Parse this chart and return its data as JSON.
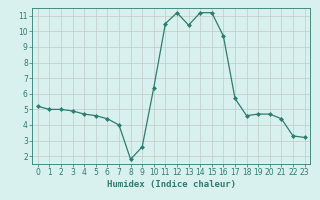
{
  "x": [
    0,
    1,
    2,
    3,
    4,
    5,
    6,
    7,
    8,
    9,
    10,
    11,
    12,
    13,
    14,
    15,
    16,
    17,
    18,
    19,
    20,
    21,
    22,
    23
  ],
  "y": [
    5.2,
    5.0,
    5.0,
    4.9,
    4.7,
    4.6,
    4.4,
    4.0,
    1.8,
    2.6,
    6.4,
    10.5,
    11.2,
    10.4,
    11.2,
    11.2,
    9.7,
    5.7,
    4.6,
    4.7,
    4.7,
    4.4,
    3.3,
    3.2
  ],
  "line_color": "#2e7d70",
  "marker": "D",
  "marker_size": 2.0,
  "bg_color": "#d8f0ee",
  "grid_color": "#c0c8c4",
  "xlabel": "Humidex (Indice chaleur)",
  "xlim": [
    -0.5,
    23.5
  ],
  "ylim": [
    1.5,
    11.5
  ],
  "yticks": [
    2,
    3,
    4,
    5,
    6,
    7,
    8,
    9,
    10,
    11
  ],
  "xticks": [
    0,
    1,
    2,
    3,
    4,
    5,
    6,
    7,
    8,
    9,
    10,
    11,
    12,
    13,
    14,
    15,
    16,
    17,
    18,
    19,
    20,
    21,
    22,
    23
  ],
  "tick_fontsize": 5.5,
  "xlabel_fontsize": 6.5,
  "axis_color": "#2e7d70",
  "linewidth": 0.9
}
